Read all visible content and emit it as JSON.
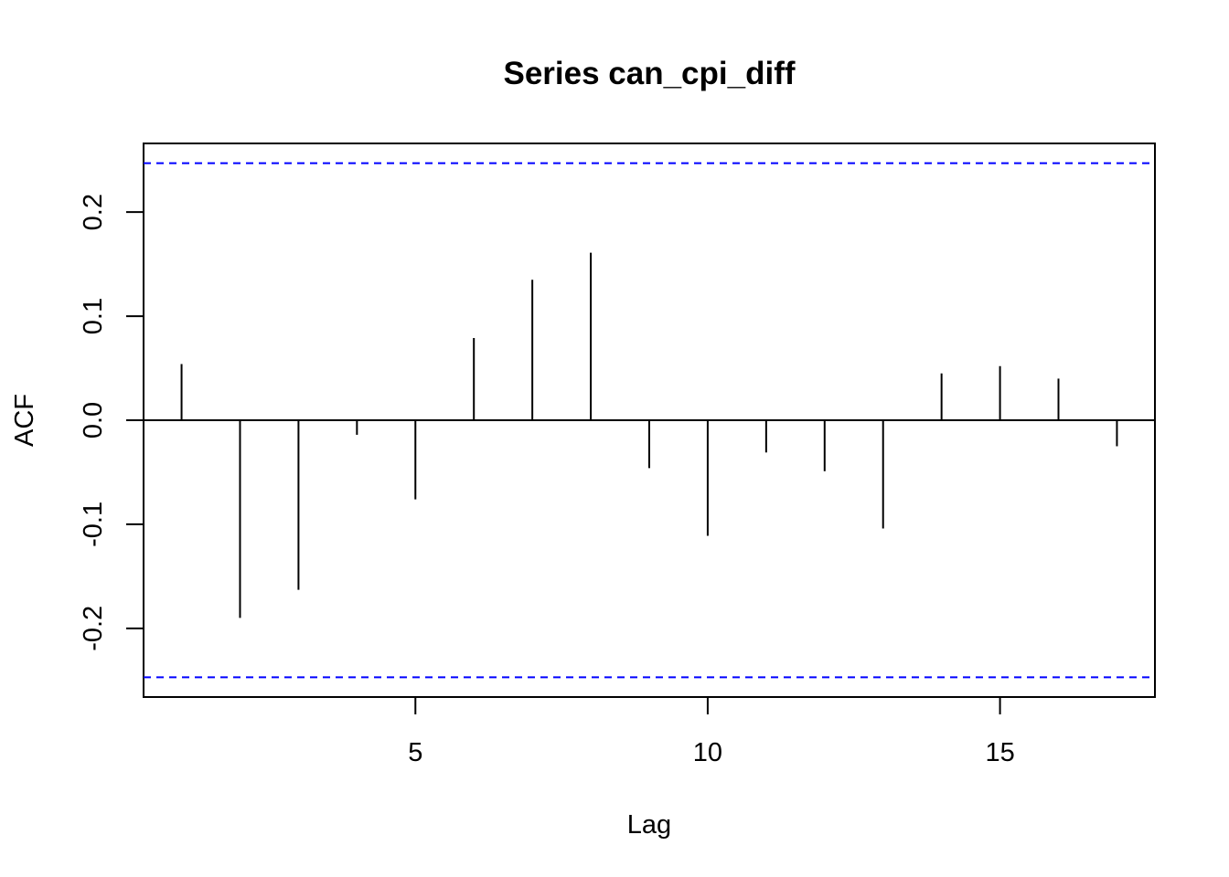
{
  "chart_data": {
    "type": "bar",
    "title": "Series can_cpi_diff",
    "xlabel": "Lag",
    "ylabel": "ACF",
    "xlim": [
      0.35,
      17.65
    ],
    "ylim": [
      -0.266,
      0.266
    ],
    "x_ticks": [
      {
        "value": 5,
        "label": "5"
      },
      {
        "value": 10,
        "label": "10"
      },
      {
        "value": 15,
        "label": "15"
      }
    ],
    "y_ticks": [
      {
        "value": -0.2,
        "label": "-0.2"
      },
      {
        "value": -0.1,
        "label": "-0.1"
      },
      {
        "value": 0.0,
        "label": "0.0"
      },
      {
        "value": 0.1,
        "label": "0.1"
      },
      {
        "value": 0.2,
        "label": "0.2"
      }
    ],
    "lags": [
      1,
      2,
      3,
      4,
      5,
      6,
      7,
      8,
      9,
      10,
      11,
      12,
      13,
      14,
      15,
      16,
      17
    ],
    "acf": [
      0.054,
      -0.19,
      -0.163,
      -0.014,
      -0.076,
      0.079,
      0.135,
      0.161,
      -0.046,
      -0.111,
      -0.031,
      -0.049,
      -0.104,
      0.045,
      0.052,
      0.04,
      -0.025
    ],
    "confidence_bound": 0.247,
    "colors": {
      "bars": "#000000",
      "zero_line": "#000000",
      "confidence_lines": "#0000ff"
    },
    "grid": false,
    "legend": "none"
  }
}
